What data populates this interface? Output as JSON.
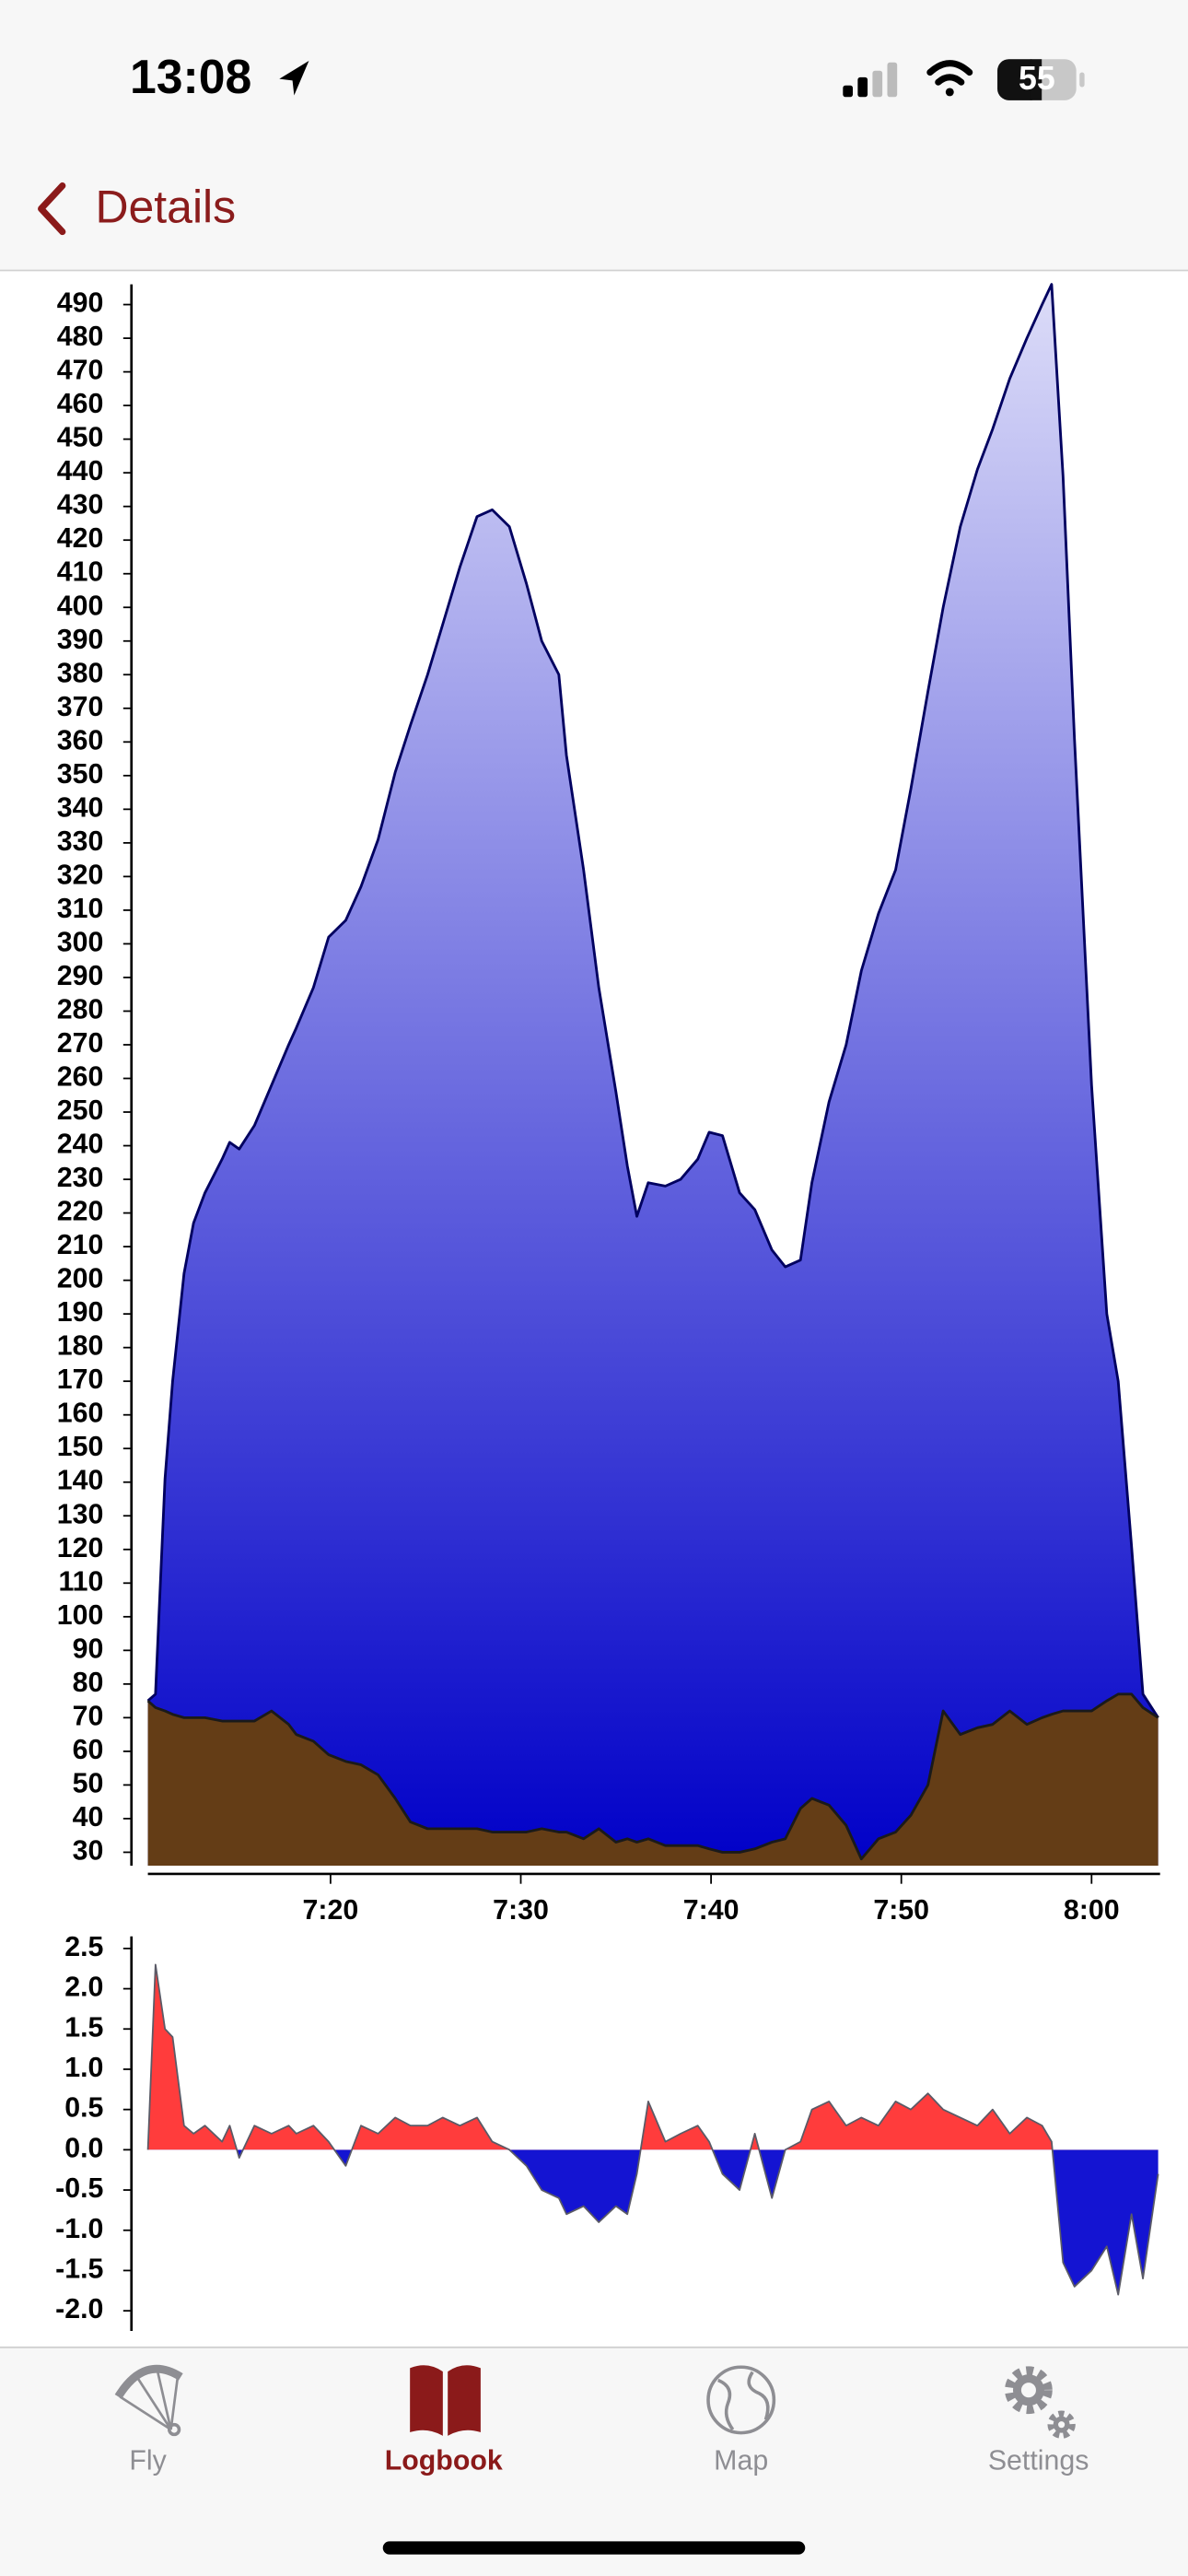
{
  "status_bar": {
    "time": "13:08",
    "battery": "55"
  },
  "nav_bar": {
    "back_label": "Details"
  },
  "chart_data": [
    {
      "type": "area",
      "x": [
        430.4,
        430.8,
        431.3,
        431.7,
        432.3,
        432.8,
        433.4,
        434.3,
        434.7,
        435.2,
        436.0,
        436.9,
        437.8,
        438.2,
        439.1,
        439.9,
        440.8,
        441.6,
        442.5,
        443.4,
        444.2,
        445.1,
        445.9,
        446.8,
        447.7,
        448.5,
        449.4,
        450.3,
        451.1,
        452.0,
        452.4,
        453.3,
        454.1,
        455.0,
        455.6,
        456.1,
        456.7,
        457.6,
        458.4,
        459.3,
        459.9,
        460.6,
        461.5,
        462.3,
        463.2,
        463.9,
        464.7,
        465.3,
        466.2,
        467.1,
        467.9,
        468.8,
        469.7,
        470.5,
        471.4,
        472.2,
        473.1,
        474.0,
        474.8,
        475.7,
        476.6,
        477.4,
        477.9,
        478.5,
        479.1,
        480.0,
        480.8,
        481.4,
        482.1,
        482.7,
        483.5
      ],
      "xlim": [
        430.4,
        483.6
      ],
      "xticks": [
        {
          "value": 440,
          "label": "7:20"
        },
        {
          "value": 450,
          "label": "7:30"
        },
        {
          "value": 460,
          "label": "7:40"
        },
        {
          "value": 470,
          "label": "7:50"
        },
        {
          "value": 480,
          "label": "8:00"
        }
      ],
      "ylim": [
        26,
        496
      ],
      "yticks": [
        30,
        40,
        50,
        60,
        70,
        80,
        90,
        100,
        110,
        120,
        130,
        140,
        150,
        160,
        170,
        180,
        190,
        200,
        210,
        220,
        230,
        240,
        250,
        260,
        270,
        280,
        290,
        300,
        310,
        320,
        330,
        340,
        350,
        360,
        370,
        380,
        390,
        400,
        410,
        420,
        430,
        440,
        450,
        460,
        470,
        480,
        490
      ],
      "series": [
        {
          "fill": [
            "#dcdcf8",
            "#0000c8"
          ],
          "stroke": "#000060",
          "values": [
            75,
            77,
            141,
            170,
            202,
            217,
            226,
            236,
            241,
            239,
            246,
            258,
            270,
            275,
            287,
            302,
            307,
            317,
            331,
            351,
            365,
            380,
            395,
            412,
            427,
            429,
            424,
            407,
            390,
            380,
            356,
            322,
            287,
            256,
            234,
            219,
            229,
            228,
            230,
            236,
            244,
            243,
            226,
            221,
            209,
            204,
            206,
            229,
            253,
            270,
            292,
            309,
            322,
            346,
            375,
            400,
            424,
            441,
            453,
            468,
            480,
            490,
            496,
            439,
            361,
            258,
            190,
            170,
            121,
            77,
            70
          ]
        },
        {
          "fill": "#643d16",
          "stroke": "#1a1a1a",
          "values": [
            75,
            73,
            72,
            71,
            70,
            70,
            70,
            69,
            69,
            69,
            69,
            72,
            68,
            65,
            63,
            59,
            57,
            56,
            53,
            46,
            39,
            37,
            37,
            37,
            37,
            36,
            36,
            36,
            37,
            36,
            36,
            34,
            37,
            33,
            34,
            33,
            34,
            32,
            32,
            32,
            31,
            30,
            30,
            31,
            33,
            34,
            43,
            46,
            44,
            38,
            28,
            34,
            36,
            41,
            50,
            72,
            65,
            67,
            68,
            72,
            68,
            70,
            71,
            72,
            72,
            72,
            75,
            77,
            77,
            73,
            70
          ]
        }
      ]
    },
    {
      "type": "area",
      "x": [
        430.4,
        430.8,
        431.3,
        431.7,
        432.3,
        432.8,
        433.4,
        434.3,
        434.7,
        435.2,
        436.0,
        436.9,
        437.8,
        438.2,
        439.1,
        439.9,
        440.8,
        441.6,
        442.5,
        443.4,
        444.2,
        445.1,
        445.9,
        446.8,
        447.7,
        448.5,
        449.4,
        450.3,
        451.1,
        452.0,
        452.4,
        453.3,
        454.1,
        455.0,
        455.6,
        456.1,
        456.7,
        457.6,
        458.4,
        459.3,
        459.9,
        460.6,
        461.5,
        462.3,
        463.2,
        463.9,
        464.7,
        465.3,
        466.2,
        467.1,
        467.9,
        468.8,
        469.7,
        470.5,
        471.4,
        472.2,
        473.1,
        474.0,
        474.8,
        475.7,
        476.6,
        477.4,
        477.9,
        478.5,
        479.1,
        480.0,
        480.8,
        481.4,
        482.1,
        482.7,
        483.5
      ],
      "xlim": [
        430.4,
        483.6
      ],
      "ylim": [
        -2.25,
        2.65
      ],
      "yticks": [
        2.5,
        {
          "value": 2,
          "label": "2.0"
        },
        1.5,
        {
          "value": 1,
          "label": "1.0"
        },
        0.5,
        {
          "value": 0,
          "label": "0.0"
        },
        -0.5,
        {
          "value": -1,
          "label": "-1.0"
        },
        -1.5,
        {
          "value": -2,
          "label": "-2.0"
        }
      ],
      "series": [
        {
          "positive_color": "#ff3c3c",
          "negative_color": "#1414d2",
          "stroke": "#5a5a66",
          "values": [
            0,
            2.3,
            1.5,
            1.4,
            0.3,
            0.2,
            0.3,
            0.1,
            0.3,
            -0.1,
            0.3,
            0.2,
            0.3,
            0.2,
            0.3,
            0.1,
            -0.2,
            0.3,
            0.2,
            0.4,
            0.3,
            0.3,
            0.4,
            0.3,
            0.4,
            0.1,
            0,
            -0.2,
            -0.5,
            -0.6,
            -0.8,
            -0.7,
            -0.9,
            -0.7,
            -0.8,
            -0.3,
            0.6,
            0.1,
            0.2,
            0.3,
            0.1,
            -0.3,
            -0.5,
            0.2,
            -0.6,
            0,
            0.1,
            0.5,
            0.6,
            0.3,
            0.4,
            0.3,
            0.6,
            0.5,
            0.7,
            0.5,
            0.4,
            0.3,
            0.5,
            0.2,
            0.4,
            0.3,
            0.1,
            -1.4,
            -1.7,
            -1.5,
            -1.2,
            -1.8,
            -0.8,
            -1.6,
            -0.3
          ]
        }
      ]
    }
  ],
  "tab_bar": {
    "items": [
      "Fly",
      "Logbook",
      "Map",
      "Settings"
    ],
    "selected": 1
  }
}
